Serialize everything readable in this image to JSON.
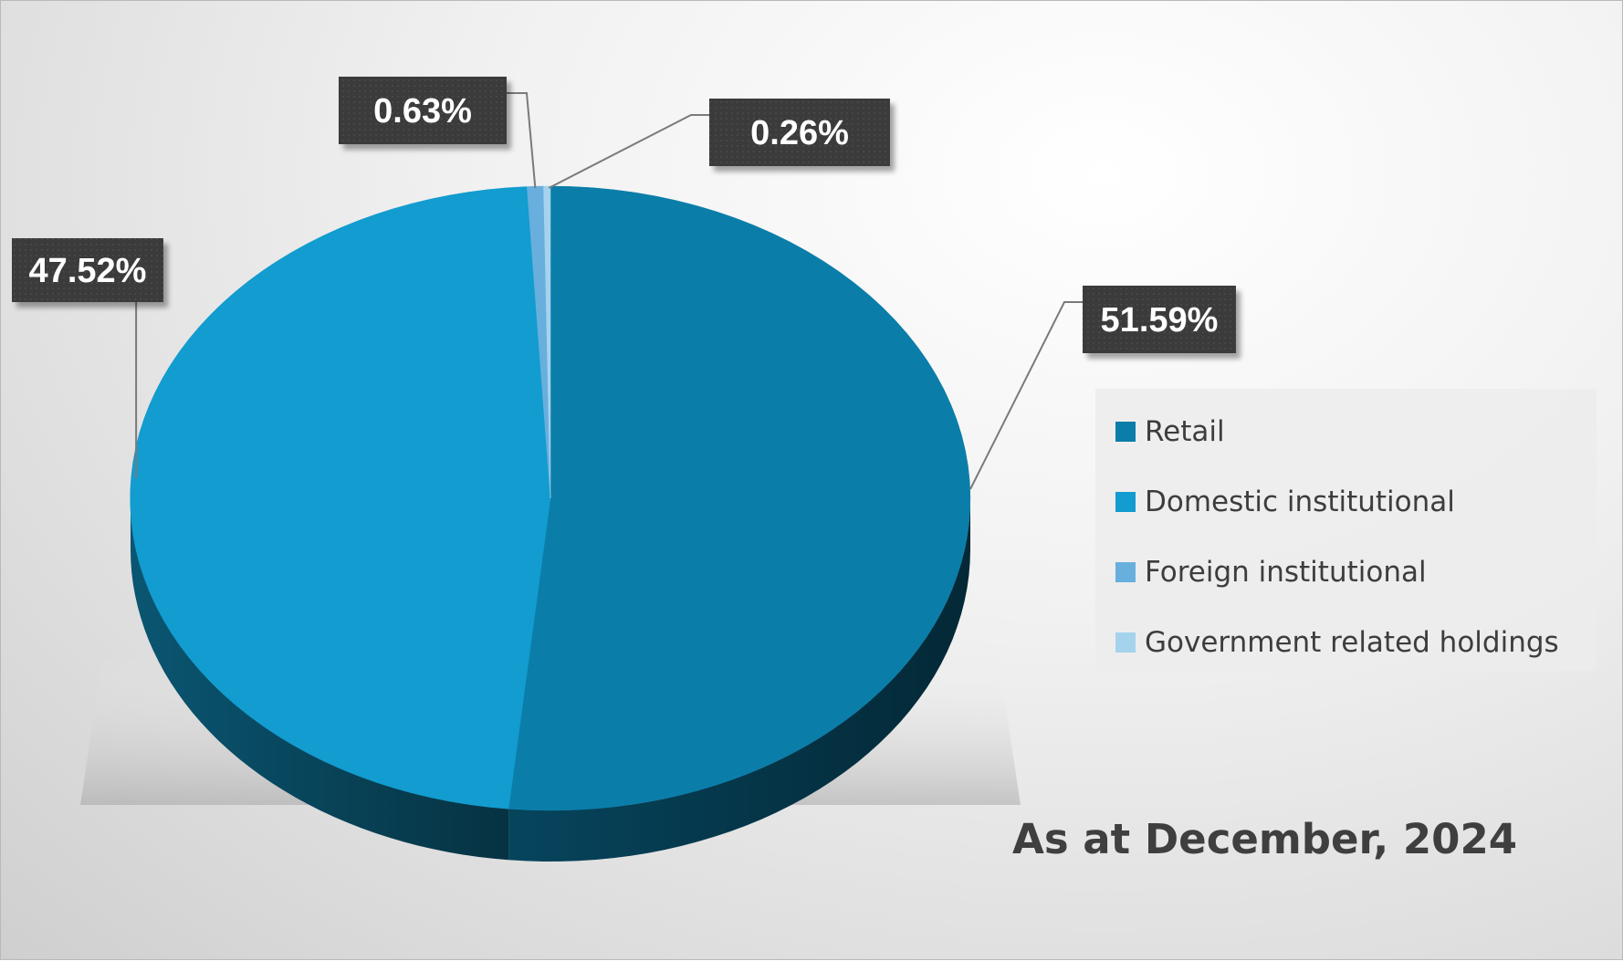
{
  "chart_data": {
    "type": "pie",
    "title": "",
    "categories": [
      "Retail",
      "Domestic institutional",
      "Foreign institutional",
      "Government related holdings"
    ],
    "values": [
      51.59,
      47.52,
      0.63,
      0.26
    ],
    "labels": [
      "51.59%",
      "47.52%",
      "0.63%",
      "0.26%"
    ],
    "colors": [
      "#0B7DA9",
      "#129CCF",
      "#68AFDE",
      "#A5D3EE"
    ],
    "legend_position": "right",
    "note": "As at December, 2024"
  }
}
